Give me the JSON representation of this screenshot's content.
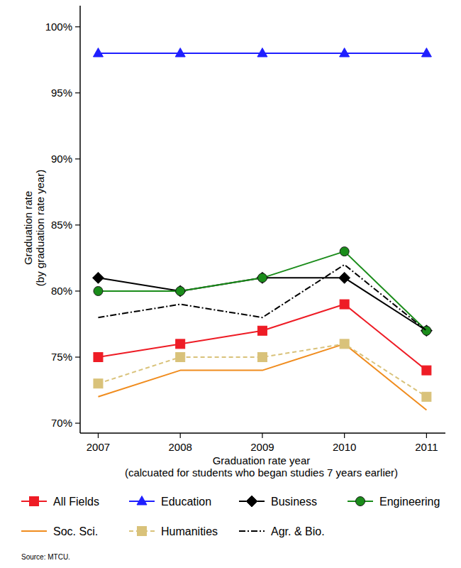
{
  "chart_data": {
    "type": "line",
    "y_label": [
      "Graduation rate",
      "(by graduation rate year)"
    ],
    "x_label": [
      "Graduation rate year",
      "(calcuated for students who began studies 7 years earlier)"
    ],
    "source": "Source: MTCU.",
    "x": [
      2007,
      2008,
      2009,
      2010,
      2011
    ],
    "xlim": [
      2006.78,
      2011.23
    ],
    "xticks": [
      2007,
      2008,
      2009,
      2010,
      2011
    ],
    "ylim": [
      69.25,
      101.6
    ],
    "yticks": [
      {
        "value": 70,
        "label": "70%"
      },
      {
        "value": 75,
        "label": "75%"
      },
      {
        "value": 80,
        "label": "80%"
      },
      {
        "value": 85,
        "label": "85%"
      },
      {
        "value": 90,
        "label": "90%"
      },
      {
        "value": 95,
        "label": "95%"
      },
      {
        "value": 100,
        "label": "100%"
      }
    ],
    "grid": false,
    "legend": "bottom",
    "series": [
      {
        "name": "All Fields",
        "color": "#ee1c25",
        "marker": "square",
        "line_style": "solid",
        "values": [
          75,
          76,
          77,
          79,
          74
        ]
      },
      {
        "name": "Education",
        "color": "#1f1fff",
        "marker": "triangle",
        "line_style": "solid",
        "values": [
          98,
          98,
          98,
          98,
          98
        ]
      },
      {
        "name": "Business",
        "color": "#000000",
        "marker": "diamond",
        "line_style": "solid",
        "values": [
          81,
          80,
          81,
          81,
          77
        ]
      },
      {
        "name": "Engineering",
        "color": "#1a8c1a",
        "marker": "circle",
        "line_style": "solid",
        "values": [
          80,
          80,
          81,
          83,
          77
        ]
      },
      {
        "name": "Soc. Sci.",
        "color": "#f08c1e",
        "marker": "none",
        "line_style": "solid",
        "values": [
          72,
          74,
          74,
          76,
          71
        ]
      },
      {
        "name": "Humanities",
        "color": "#d9c27a",
        "marker": "square",
        "line_style": "dashed",
        "values": [
          73,
          75,
          75,
          76,
          72
        ]
      },
      {
        "name": "Agr. & Bio.",
        "color": "#000000",
        "marker": "none",
        "line_style": "dashdot",
        "values": [
          78,
          79,
          78,
          82,
          77
        ]
      }
    ]
  }
}
